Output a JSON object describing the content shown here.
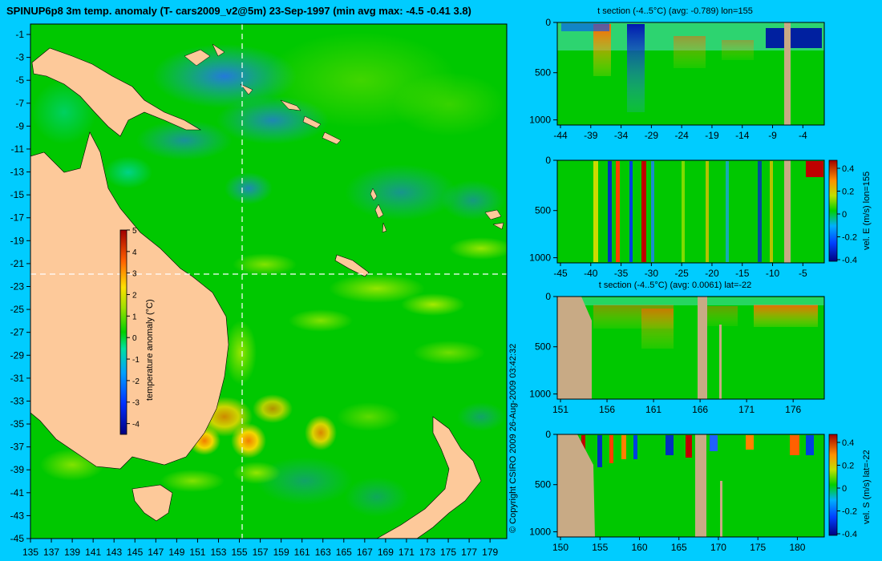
{
  "title": "SPINUP6p8 3m temp. anomaly (T- cars2009_v2@5m) 23-Sep-1997 (min avg max: -4.5 -0.41 3.8)",
  "copyright": "© Copyright CSIRO 2009   26-Aug-2009 03:42:32",
  "colors": {
    "background": "#00ccff",
    "land": "#fdc99a",
    "section_land": "#c8aa85",
    "ocean_base": "#00c800"
  },
  "map": {
    "lon_ticks": [
      "135",
      "137",
      "139",
      "141",
      "143",
      "145",
      "147",
      "149",
      "151",
      "153",
      "155",
      "157",
      "159",
      "161",
      "163",
      "165",
      "167",
      "169",
      "171",
      "173",
      "175",
      "177",
      "179"
    ],
    "lat_ticks": [
      "-1",
      "-3",
      "-5",
      "-7",
      "-9",
      "-11",
      "-13",
      "-15",
      "-17",
      "-19",
      "-21",
      "-23",
      "-25",
      "-27",
      "-29",
      "-31",
      "-33",
      "-35",
      "-37",
      "-39",
      "-41",
      "-43",
      "-45"
    ],
    "colorbar": {
      "label": "temperature anomaly (°C)",
      "ticks": [
        "5",
        "4",
        "3",
        "2",
        "1",
        "0",
        "-1",
        "-2",
        "-3",
        "-4"
      ]
    },
    "crosshair": {
      "lon": 155,
      "lat": -22
    }
  },
  "panels": [
    {
      "title": "t section (-4..5°C) (avg: -0.789) lon=155",
      "y_ticks": [
        "0",
        "500",
        "1000"
      ],
      "x_ticks": [
        "-44",
        "-39",
        "-34",
        "-29",
        "-24",
        "-19",
        "-14",
        "-9",
        "-4"
      ],
      "colorbar_label": "",
      "colorbar_ticks": []
    },
    {
      "title": "",
      "y_ticks": [
        "0",
        "500",
        "1000"
      ],
      "x_ticks": [
        "-45",
        "-40",
        "-35",
        "-30",
        "-25",
        "-20",
        "-15",
        "-10",
        "-5"
      ],
      "colorbar_label": "vel. E (m/s) lon=155",
      "colorbar_ticks": [
        "0.4",
        "0.2",
        "0",
        "-0.2",
        "-0.4"
      ]
    },
    {
      "title": "t section (-4..5°C) (avg: 0.0061) lat=-22",
      "y_ticks": [
        "0",
        "500",
        "1000"
      ],
      "x_ticks": [
        "151",
        "156",
        "161",
        "166",
        "171",
        "176"
      ],
      "colorbar_label": "",
      "colorbar_ticks": []
    },
    {
      "title": "",
      "y_ticks": [
        "0",
        "500",
        "1000"
      ],
      "x_ticks": [
        "150",
        "155",
        "160",
        "165",
        "170",
        "175",
        "180"
      ],
      "colorbar_label": "vel. S (m/s) lat=-22",
      "colorbar_ticks": [
        "0.4",
        "0.2",
        "0",
        "-0.2",
        "-0.4"
      ]
    }
  ]
}
